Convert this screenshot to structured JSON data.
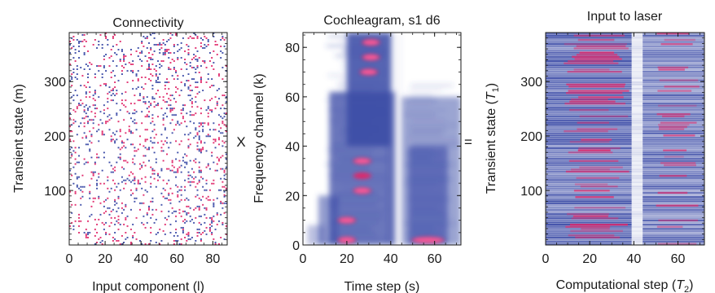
{
  "operators": {
    "times": "X",
    "equals": "="
  },
  "colors": {
    "blue": "#3a4aa6",
    "red": "#e0286a",
    "pink": "#ff5c9a",
    "background": "#ffffff",
    "axis": "#1a1a1a"
  },
  "chart_data": [
    {
      "id": "connectivity",
      "type": "heatmap",
      "title": "Connectivity",
      "xlabel": "Input component (l)",
      "ylabel": "Transient state (m)",
      "xlim": [
        0,
        88
      ],
      "ylim": [
        0,
        390
      ],
      "xticks": [
        "0",
        "20",
        "40",
        "60",
        "80"
      ],
      "yticks": [
        "100",
        "200",
        "300"
      ],
      "xtick_values": [
        0,
        20,
        40,
        60,
        80
      ],
      "ytick_values": [
        100,
        200,
        300
      ],
      "encoding": "sparse random connectivity matrix, red = positive weights, blue = negative weights",
      "density": 0.12,
      "series": [
        {
          "name": "positive",
          "color": "#e0286a"
        },
        {
          "name": "negative",
          "color": "#3a4aa6"
        }
      ]
    },
    {
      "id": "cochleagram",
      "type": "heatmap",
      "title": "Cochleagram, s1 d6",
      "xlabel": "Time step (s)",
      "ylabel": "Frequency channel (k)",
      "xlim": [
        0,
        72
      ],
      "ylim": [
        0,
        86
      ],
      "xticks": [
        "0",
        "20",
        "40",
        "60"
      ],
      "yticks": [
        "0",
        "20",
        "40",
        "60",
        "80"
      ],
      "xtick_values": [
        0,
        20,
        40,
        60
      ],
      "ytick_values": [
        0,
        20,
        40,
        60,
        80
      ],
      "encoding": "spectral energy: white = low, blue = medium, pink/red = high",
      "hotspots": [
        {
          "t": 31,
          "k": 82,
          "level": "high"
        },
        {
          "t": 31,
          "k": 76,
          "level": "high"
        },
        {
          "t": 30,
          "k": 70,
          "level": "high"
        },
        {
          "t": 27,
          "k": 34,
          "level": "high"
        },
        {
          "t": 27,
          "k": 28,
          "level": "medium"
        },
        {
          "t": 27,
          "k": 22,
          "level": "high"
        },
        {
          "t": 20,
          "k": 10,
          "level": "high"
        },
        {
          "t": 20,
          "k": 2,
          "level": "high"
        },
        {
          "t": 57,
          "k": 2,
          "level": "high"
        }
      ]
    },
    {
      "id": "input-to-laser",
      "type": "heatmap",
      "title": "Input to laser",
      "xlabel": "Computational step (T2)",
      "ylabel": "Transient state (T1)",
      "xlim": [
        0,
        72
      ],
      "ylim": [
        0,
        390
      ],
      "xticks": [
        "0",
        "20",
        "40",
        "60"
      ],
      "yticks": [
        "100",
        "200",
        "300"
      ],
      "xtick_values": [
        0,
        20,
        40,
        60
      ],
      "ytick_values": [
        100,
        200,
        300
      ],
      "encoding": "product matrix: blue = medium, pink/red = high, light column near step 42",
      "gap_step": 42
    }
  ]
}
